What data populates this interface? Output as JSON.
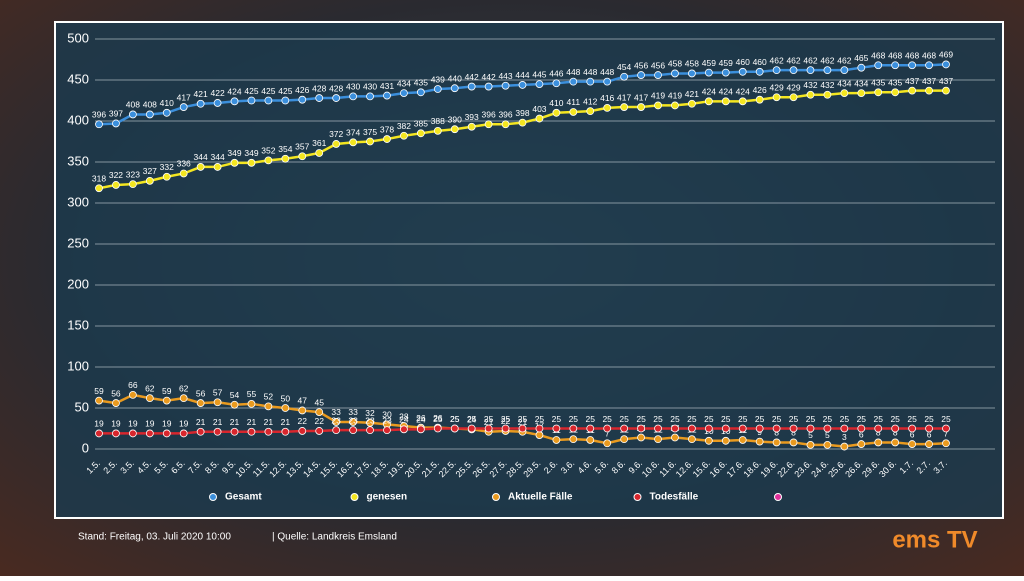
{
  "chart_data": {
    "type": "line",
    "categories": [
      "1.5.",
      "2.5.",
      "3.5.",
      "4.5.",
      "5.5.",
      "6.5.",
      "7.5.",
      "8.5.",
      "9.5.",
      "10.5.",
      "11.5.",
      "12.5.",
      "13.5.",
      "14.5.",
      "15.5.",
      "16.5.",
      "17.5.",
      "18.5.",
      "19.5.",
      "20.5.",
      "21.5.",
      "22.5.",
      "25.5.",
      "26.5.",
      "27.5.",
      "28.5.",
      "29.5.",
      "2.6.",
      "3.6.",
      "4.6.",
      "5.6.",
      "8.6.",
      "9.6.",
      "10.6.",
      "11.6.",
      "12.6.",
      "15.6.",
      "16.6.",
      "17.6.",
      "18.6.",
      "19.6.",
      "22.6.",
      "23.6.",
      "24.6.",
      "25.6.",
      "26.6.",
      "29.6.",
      "30.6.",
      "1.7.",
      "2.7.",
      "3.7."
    ],
    "series": [
      {
        "name": "Gesamt",
        "color": "#3b8fdc",
        "values": [
          396,
          397,
          408,
          408,
          410,
          417,
          421,
          422,
          424,
          425,
          425,
          425,
          426,
          428,
          428,
          430,
          430,
          431,
          434,
          435,
          439,
          440,
          442,
          442,
          443,
          444,
          445,
          446,
          448,
          448,
          448,
          454,
          456,
          456,
          458,
          458,
          459,
          459,
          460,
          460,
          462,
          462,
          462,
          462,
          462,
          465,
          468,
          468,
          468,
          468,
          469
        ]
      },
      {
        "name": "genesen",
        "color": "#f4e620",
        "values": [
          318,
          322,
          323,
          327,
          332,
          336,
          344,
          344,
          349,
          349,
          352,
          354,
          357,
          361,
          372,
          374,
          375,
          378,
          382,
          385,
          388,
          390,
          393,
          396,
          396,
          398,
          403,
          410,
          411,
          412,
          416,
          417,
          417,
          419,
          419,
          421,
          424,
          424,
          424,
          426,
          429,
          429,
          432,
          432,
          434,
          434,
          435,
          435,
          437,
          437,
          437
        ]
      },
      {
        "name": "Aktuelle Fälle",
        "color": "#e99a1f",
        "values": [
          59,
          56,
          66,
          62,
          59,
          62,
          56,
          57,
          54,
          55,
          52,
          50,
          47,
          45,
          33,
          33,
          32,
          30,
          28,
          26,
          26,
          25,
          24,
          21,
          22,
          21,
          17,
          11,
          12,
          11,
          7,
          12,
          14,
          12,
          14,
          12,
          10,
          10,
          11,
          9,
          8,
          8,
          5,
          5,
          3,
          6,
          8,
          8,
          6,
          6,
          7
        ]
      },
      {
        "name": "Todesfälle",
        "color": "#d8262d",
        "values": [
          19,
          19,
          19,
          19,
          19,
          19,
          21,
          21,
          21,
          21,
          21,
          21,
          22,
          22,
          23,
          23,
          23,
          23,
          24,
          24,
          25,
          25,
          25,
          25,
          25,
          25,
          25,
          25,
          25,
          25,
          25,
          25,
          25,
          25,
          25,
          25,
          25,
          25,
          25,
          25,
          25,
          25,
          25,
          25,
          25,
          25,
          25,
          25,
          25,
          25,
          25
        ]
      }
    ],
    "ylim": [
      0,
      500
    ],
    "yticks": [
      0,
      50,
      100,
      150,
      200,
      250,
      300,
      350,
      400,
      450,
      500
    ],
    "grid": true,
    "legend": "bottom"
  },
  "footer": {
    "stand": "Stand:  Freitag, 03. Juli 2020 10:00",
    "quelle": "|  Quelle:  Landkreis Emsland",
    "logo": "ems TV"
  }
}
